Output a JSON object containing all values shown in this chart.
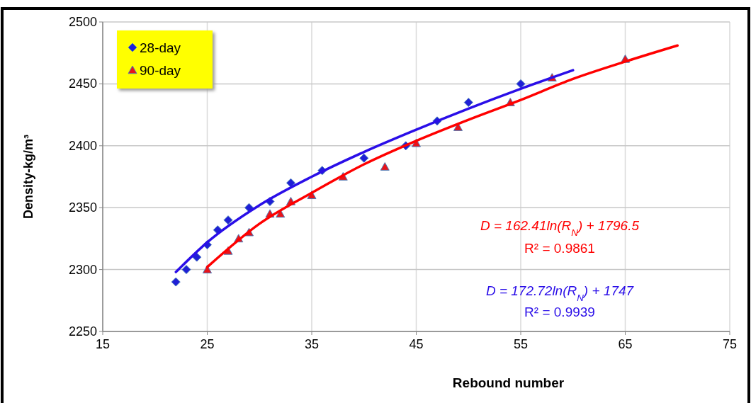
{
  "chart_data": {
    "type": "scatter",
    "xlabel": "Rebound number",
    "ylabel": "Density-kg/m³",
    "xlim": [
      15,
      75
    ],
    "xticks": [
      15,
      25,
      35,
      45,
      55,
      65,
      75
    ],
    "ylim": [
      2250,
      2500
    ],
    "yticks": [
      2250,
      2300,
      2350,
      2400,
      2450,
      2500
    ],
    "grid": true,
    "legend": "top left",
    "series": [
      {
        "name": "28-day",
        "marker": "diamond",
        "color": "#1f1fd6",
        "x": [
          22,
          23,
          24,
          25,
          26,
          27,
          29,
          31,
          33,
          36,
          40,
          44,
          47,
          50,
          55
        ],
        "values": [
          2290,
          2300,
          2310,
          2320,
          2332,
          2340,
          2350,
          2355,
          2370,
          2380,
          2390,
          2400,
          2420,
          2435,
          2450
        ]
      },
      {
        "name": "90-day",
        "marker": "triangle",
        "color": "#e8141a",
        "x": [
          25,
          27,
          28,
          29,
          31,
          32,
          33,
          35,
          38,
          42,
          45,
          49,
          54,
          58,
          65
        ],
        "values": [
          2300,
          2315,
          2325,
          2330,
          2345,
          2345,
          2355,
          2360,
          2375,
          2383,
          2402,
          2415,
          2435,
          2455,
          2470
        ]
      },
      {
        "type": "line",
        "marker": "none",
        "color": "#2a0ee8",
        "x": [
          22,
          25,
          30,
          35,
          40,
          45,
          50,
          55,
          60
        ],
        "values": [
          2298,
          2322,
          2352,
          2375,
          2395,
          2413,
          2430,
          2446,
          2461
        ]
      },
      {
        "type": "line",
        "marker": "none",
        "color": "#ff0000",
        "x": [
          25,
          30,
          35,
          40,
          45,
          50,
          55,
          60,
          65,
          70
        ],
        "values": [
          2302,
          2337,
          2362,
          2385,
          2404,
          2421,
          2437,
          2454,
          2468,
          2481
        ]
      }
    ],
    "annotations": [
      "D = 162.41ln(R$_{N}$) + 1796.5",
      "R² = 0.9861",
      "D = 172.72ln(R$_{N}$) + 1747",
      "R² = 0.9939"
    ]
  }
}
